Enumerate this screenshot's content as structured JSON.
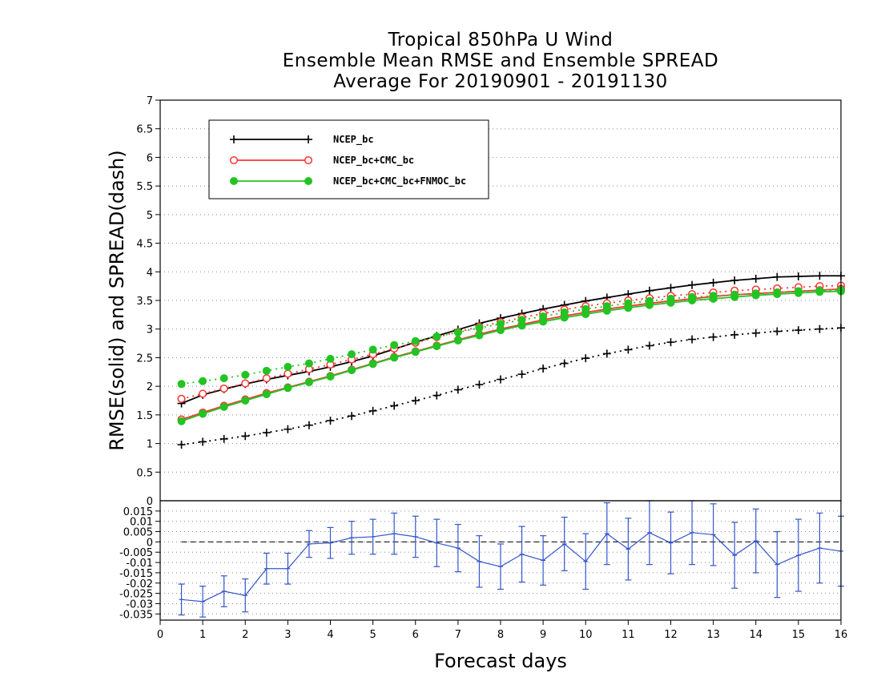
{
  "chart_data": [
    {
      "type": "line",
      "title": [
        "Tropical 850hPa U Wind",
        "Ensemble Mean RMSE and Ensemble SPREAD",
        "Average For 20190901 - 20191130"
      ],
      "ylabel": "RMSE(solid) and SPREAD(dash)",
      "xlim": [
        0,
        16
      ],
      "ylim": [
        0,
        7
      ],
      "yticks": [
        "0.5",
        "1",
        "1.5",
        "2",
        "2.5",
        "3",
        "3.5",
        "4",
        "4.5",
        "5",
        "5.5",
        "6",
        "6.5",
        "7"
      ],
      "grid": true,
      "legend_position": "top-left",
      "x": [
        0.5,
        1,
        1.5,
        2,
        2.5,
        3,
        3.5,
        4,
        4.5,
        5,
        5.5,
        6,
        6.5,
        7,
        7.5,
        8,
        8.5,
        9,
        9.5,
        10,
        10.5,
        11,
        11.5,
        12,
        12.5,
        13,
        13.5,
        14,
        14.5,
        15,
        15.5,
        16
      ],
      "series": [
        {
          "name": "NCEP_bc",
          "color": "#000000",
          "marker": "plus",
          "rmse": [
            1.7,
            1.85,
            1.95,
            2.04,
            2.12,
            2.19,
            2.26,
            2.34,
            2.43,
            2.53,
            2.65,
            2.77,
            2.88,
            2.99,
            3.1,
            3.19,
            3.27,
            3.35,
            3.42,
            3.49,
            3.55,
            3.61,
            3.67,
            3.72,
            3.77,
            3.81,
            3.85,
            3.88,
            3.91,
            3.92,
            3.93,
            3.93
          ],
          "spread": [
            0.98,
            1.03,
            1.08,
            1.13,
            1.19,
            1.25,
            1.32,
            1.4,
            1.48,
            1.57,
            1.66,
            1.75,
            1.84,
            1.94,
            2.03,
            2.12,
            2.21,
            2.31,
            2.4,
            2.49,
            2.57,
            2.64,
            2.71,
            2.77,
            2.82,
            2.86,
            2.9,
            2.93,
            2.96,
            2.98,
            3.0,
            3.02
          ]
        },
        {
          "name": "NCEP_bc+CMC_bc",
          "color": "#ff3333",
          "marker": "open-circle",
          "rmse": [
            1.42,
            1.54,
            1.66,
            1.77,
            1.88,
            1.98,
            2.08,
            2.18,
            2.29,
            2.4,
            2.51,
            2.61,
            2.71,
            2.81,
            2.91,
            3.0,
            3.08,
            3.16,
            3.23,
            3.29,
            3.35,
            3.4,
            3.45,
            3.49,
            3.53,
            3.57,
            3.6,
            3.62,
            3.64,
            3.66,
            3.68,
            3.7
          ],
          "spread": [
            1.78,
            1.87,
            1.96,
            2.05,
            2.14,
            2.22,
            2.3,
            2.38,
            2.47,
            2.56,
            2.66,
            2.76,
            2.86,
            2.95,
            3.04,
            3.12,
            3.2,
            3.27,
            3.34,
            3.4,
            3.45,
            3.5,
            3.54,
            3.58,
            3.61,
            3.64,
            3.67,
            3.69,
            3.71,
            3.73,
            3.75,
            3.76
          ]
        },
        {
          "name": "NCEP_bc+CMC_bc+FNMOC_bc",
          "color": "#22c422",
          "marker": "filled-circle",
          "rmse": [
            1.39,
            1.52,
            1.64,
            1.75,
            1.86,
            1.97,
            2.07,
            2.17,
            2.28,
            2.39,
            2.5,
            2.6,
            2.7,
            2.8,
            2.89,
            2.98,
            3.06,
            3.13,
            3.2,
            3.26,
            3.32,
            3.37,
            3.42,
            3.46,
            3.5,
            3.53,
            3.56,
            3.59,
            3.61,
            3.63,
            3.65,
            3.66
          ],
          "spread": [
            2.04,
            2.09,
            2.14,
            2.2,
            2.27,
            2.34,
            2.4,
            2.48,
            2.56,
            2.64,
            2.72,
            2.79,
            2.87,
            2.94,
            3.02,
            3.09,
            3.16,
            3.22,
            3.29,
            3.35,
            3.4,
            3.45,
            3.49,
            3.53,
            3.56,
            3.58,
            3.6,
            3.62,
            3.64,
            3.66,
            3.67,
            3.68
          ]
        }
      ]
    },
    {
      "type": "line",
      "xlabel": "Forecast days",
      "xlim": [
        0,
        16
      ],
      "ylim": [
        -0.038,
        0.02
      ],
      "xticks": [
        "0",
        "1",
        "2",
        "3",
        "4",
        "5",
        "6",
        "7",
        "8",
        "9",
        "10",
        "11",
        "12",
        "13",
        "14",
        "15",
        "16"
      ],
      "yticks": [
        "0.015",
        "0.01",
        "0.005",
        "0",
        "-0.005",
        "-0.01",
        "-0.015",
        "-0.02",
        "-0.025",
        "-0.03",
        "-0.035"
      ],
      "yticks_values": [
        0.015,
        0.01,
        0.005,
        0,
        -0.005,
        -0.01,
        -0.015,
        -0.02,
        -0.025,
        -0.03,
        -0.035
      ],
      "reference_line": 0,
      "color": "#3355cc",
      "x": [
        0.5,
        1,
        1.5,
        2,
        2.5,
        3,
        3.5,
        4,
        4.5,
        5,
        5.5,
        6,
        6.5,
        7,
        7.5,
        8,
        8.5,
        9,
        9.5,
        10,
        10.5,
        11,
        11.5,
        12,
        12.5,
        13,
        13.5,
        14,
        14.5,
        15,
        15.5,
        16
      ],
      "values": [
        -0.028,
        -0.029,
        -0.024,
        -0.026,
        -0.013,
        -0.013,
        -0.001,
        -0.0005,
        0.002,
        0.0025,
        0.004,
        0.0025,
        -0.0005,
        -0.003,
        -0.0095,
        -0.012,
        -0.006,
        -0.009,
        -0.001,
        -0.0095,
        0.004,
        -0.0035,
        0.0045,
        -0.0005,
        0.0045,
        0.0035,
        -0.0065,
        0.0005,
        -0.011,
        -0.0065,
        -0.003,
        -0.0045
      ],
      "error": [
        0.0075,
        0.0075,
        0.0075,
        0.008,
        0.0075,
        0.0075,
        0.0065,
        0.0075,
        0.008,
        0.0085,
        0.01,
        0.01,
        0.0115,
        0.0115,
        0.0125,
        0.011,
        0.0135,
        0.012,
        0.013,
        0.0135,
        0.015,
        0.015,
        0.0155,
        0.015,
        0.0155,
        0.015,
        0.016,
        0.0155,
        0.016,
        0.0175,
        0.017,
        0.017
      ]
    }
  ]
}
